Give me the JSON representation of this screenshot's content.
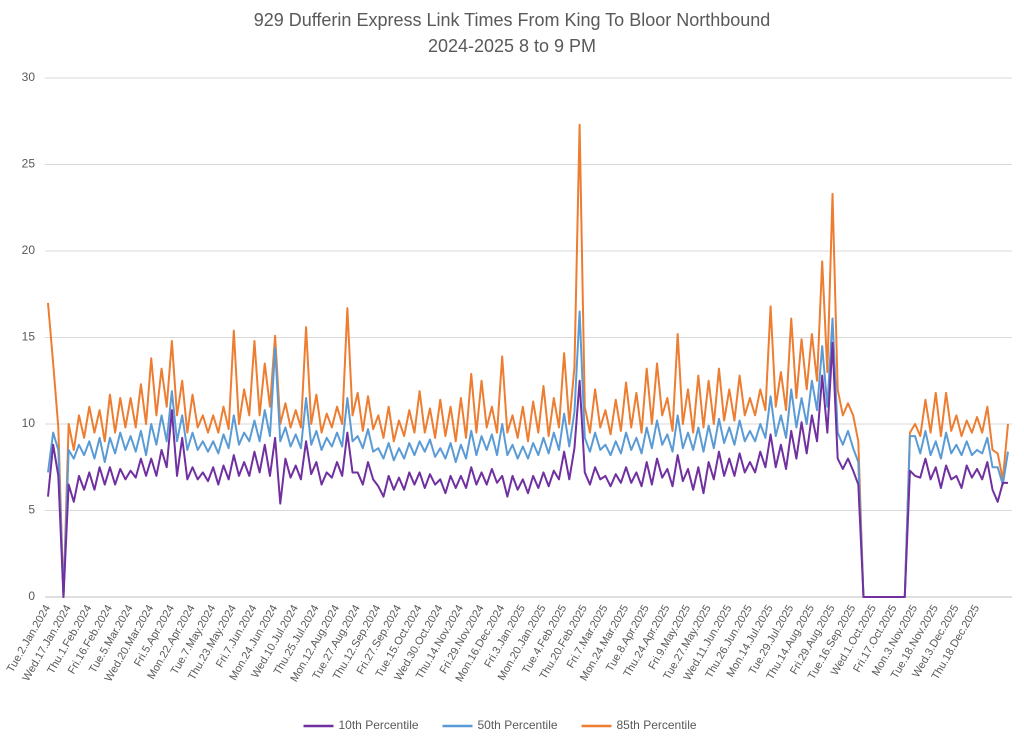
{
  "chart_data": {
    "type": "line",
    "title": "929 Dufferin Express Link Times From King To Bloor Northbound",
    "subtitle": "2024-2025 8 to 9 PM",
    "categories": [
      "Tue.2.Jan.2024",
      null,
      null,
      null,
      "Wed.17.Jan.2024",
      null,
      null,
      null,
      "Thu.1.Feb.2024",
      null,
      null,
      null,
      "Fri.16.Feb.2024",
      null,
      null,
      null,
      "Tue.5.Mar.2024",
      null,
      null,
      null,
      "Wed.20.Mar.2024",
      null,
      null,
      null,
      "Fri.5.Apr.2024",
      null,
      null,
      null,
      "Mon.22.Apr.2024",
      null,
      null,
      null,
      "Tue.7.May.2024",
      null,
      null,
      null,
      "Thu.23.May.2024",
      null,
      null,
      null,
      "Fri.7.Jun.2024",
      null,
      null,
      null,
      "Mon.24.Jun.2024",
      null,
      null,
      null,
      "Wed.10.Jul.2024",
      null,
      null,
      null,
      "Thu.25.Jul.2024",
      null,
      null,
      null,
      "Mon.12.Aug.2024",
      null,
      null,
      null,
      "Tue.27.Aug.2024",
      null,
      null,
      null,
      "Thu.12.Sep.2024",
      null,
      null,
      null,
      "Fri.27.Sep.2024",
      null,
      null,
      null,
      "Tue.15.Oct.2024",
      null,
      null,
      null,
      "Wed.30.Oct.2024",
      null,
      null,
      null,
      "Thu.14.Nov.2024",
      null,
      null,
      null,
      "Fri.29.Nov.2024",
      null,
      null,
      null,
      "Mon.16.Dec.2024",
      null,
      null,
      null,
      "Fri.3.Jan.2025",
      null,
      null,
      null,
      "Mon.20.Jan.2025",
      null,
      null,
      null,
      "Tue.4.Feb.2025",
      null,
      null,
      null,
      "Thu.20.Feb.2025",
      null,
      null,
      null,
      "Fri.7.Mar.2025",
      null,
      null,
      null,
      "Mon.24.Mar.2025",
      null,
      null,
      null,
      "Tue.8.Apr.2025",
      null,
      null,
      null,
      "Thu.24.Apr.2025",
      null,
      null,
      null,
      "Fri.9.May.2025",
      null,
      null,
      null,
      "Tue.27.May.2025",
      null,
      null,
      null,
      "Wed.11.Jun.2025",
      null,
      null,
      null,
      "Thu.26.Jun.2025",
      null,
      null,
      null,
      "Mon.14.Jul.2025",
      null,
      null,
      null,
      "Tue.29.Jul.2025",
      null,
      null,
      null,
      "Thu.14.Aug.2025",
      null,
      null,
      null,
      "Fri.29.Aug.2025",
      null,
      null,
      null,
      "Tue.16.Sep.2025",
      null,
      null,
      null,
      "Wed.1.Oct.2025",
      null,
      null,
      null,
      "Fri.17.Oct.2025",
      null,
      null,
      null,
      "Mon.3.Nov.2025",
      null,
      null,
      null,
      "Tue.18.Nov.2025",
      null,
      null,
      null,
      "Wed.3.Dec.2025",
      null,
      null,
      null,
      "Thu.18.Dec.2025",
      null,
      null,
      null,
      null,
      null,
      null
    ],
    "series": [
      {
        "name": "10th Percentile",
        "color": "#7030a0",
        "values": [
          5.8,
          8.8,
          7,
          0,
          6.5,
          5.5,
          7,
          6.2,
          7.2,
          6.2,
          7.5,
          6.5,
          7.5,
          6.5,
          7.4,
          6.8,
          7.3,
          6.9,
          8,
          7,
          8,
          7,
          8.5,
          7.5,
          10.8,
          7,
          9.2,
          6.8,
          7.5,
          6.8,
          7.2,
          6.7,
          7.5,
          6.5,
          7.6,
          6.8,
          8.2,
          7,
          7.8,
          7,
          8.4,
          7.2,
          8.8,
          7,
          9.2,
          5.4,
          8,
          6.9,
          7.6,
          6.8,
          9,
          7.1,
          7.8,
          6.5,
          7.2,
          6.9,
          7.8,
          7,
          9.5,
          7.2,
          7.2,
          6.5,
          7.8,
          6.8,
          6.4,
          5.8,
          7,
          6.2,
          6.9,
          6.2,
          7.2,
          6.5,
          7.2,
          6.3,
          7.1,
          6.5,
          6.8,
          6,
          7,
          6.3,
          7,
          6.3,
          7.5,
          6.5,
          7.2,
          6.5,
          7.4,
          6.6,
          7,
          5.8,
          7,
          6.2,
          6.8,
          6,
          7,
          6.3,
          7.2,
          6.4,
          7.3,
          6.8,
          8.4,
          6.8,
          8.6,
          12.5,
          7.2,
          6.5,
          7.5,
          6.8,
          7,
          6.4,
          7.1,
          6.6,
          7.5,
          6.6,
          7.2,
          6.4,
          7.8,
          6.5,
          8,
          6.9,
          7.4,
          6.4,
          8.2,
          6.7,
          7.4,
          6.2,
          7.5,
          6,
          7.8,
          6.8,
          8.4,
          7,
          8,
          7,
          8.3,
          7.2,
          7.8,
          7.2,
          8.4,
          7.5,
          9.4,
          7.5,
          8.8,
          7.4,
          9.6,
          8,
          10.1,
          8.3,
          10.5,
          9,
          12.8,
          9.5,
          14.7,
          8,
          7.4,
          8,
          7.3,
          6.5,
          0,
          0,
          0,
          0,
          0,
          0,
          0,
          0,
          0,
          7.3,
          7,
          6.9,
          8,
          6.8,
          7.5,
          6.3,
          7.6,
          6.8,
          7,
          6.3,
          7.6,
          6.9,
          7.4,
          6.8,
          7.8,
          6.2,
          5.5,
          6.6,
          6.6
        ]
      },
      {
        "name": "50th Percentile",
        "color": "#5b9bd5",
        "values": [
          7.2,
          9.5,
          8.5,
          0,
          8.5,
          8,
          8.8,
          8.2,
          9,
          8,
          9.2,
          7.8,
          9.2,
          8.3,
          9.5,
          8.5,
          9.3,
          8.4,
          9.6,
          8.2,
          10,
          8.8,
          10.5,
          9,
          11.9,
          9,
          10.5,
          8.5,
          9.5,
          8.5,
          9,
          8.4,
          9,
          8.3,
          9.4,
          8.6,
          10.5,
          8.8,
          9.5,
          9,
          10.2,
          9,
          10.8,
          9.3,
          14.4,
          9,
          9.8,
          8.7,
          9.4,
          8.6,
          11.5,
          8.8,
          9.6,
          8.5,
          9.2,
          8.7,
          9.5,
          8.7,
          11.5,
          9,
          9.3,
          8.6,
          9.7,
          8.4,
          8.6,
          8,
          8.9,
          7.9,
          8.6,
          8,
          8.9,
          8.2,
          9,
          8.4,
          9.1,
          8.1,
          8.6,
          8,
          8.9,
          7.8,
          8.8,
          8,
          9.6,
          8.2,
          9.3,
          8.5,
          9.4,
          8.2,
          10,
          8.2,
          8.8,
          8,
          8.7,
          8,
          8.9,
          8.2,
          9.2,
          8.3,
          9.5,
          8.5,
          10.6,
          8.7,
          10.7,
          16.5,
          9.2,
          8.4,
          9.5,
          8.5,
          8.8,
          8.2,
          9,
          8.3,
          9.5,
          8.5,
          9.2,
          8.3,
          9.8,
          8.6,
          10.2,
          8.8,
          9.4,
          8.4,
          10.5,
          8.6,
          9.5,
          8.5,
          9.8,
          8.4,
          9.9,
          8.6,
          10.3,
          8.9,
          9.8,
          8.8,
          10.2,
          9,
          9.6,
          9,
          10,
          9.2,
          11.6,
          9.3,
          10.5,
          9.2,
          12,
          9.8,
          11.5,
          10,
          12.5,
          10.8,
          14.5,
          11,
          16.1,
          9.5,
          8.8,
          9.6,
          8.6,
          7.8,
          0,
          0,
          0,
          0,
          0,
          0,
          0,
          0,
          0,
          9.3,
          9.3,
          8.3,
          9.6,
          8.2,
          9,
          8,
          9.5,
          8.3,
          8.8,
          8.2,
          9,
          8.2,
          8.5,
          8.3,
          9.2,
          7.5,
          7.5,
          6.5,
          8.4
        ]
      },
      {
        "name": "85th Percentile",
        "color": "#ed7d31",
        "values": [
          17,
          13.5,
          9.8,
          0,
          10,
          8.5,
          10.5,
          9.2,
          11,
          9.5,
          10.8,
          9,
          11.7,
          9.5,
          11.5,
          9.8,
          11.5,
          9.8,
          12.3,
          10,
          13.8,
          10.5,
          13.2,
          11,
          14.8,
          10.5,
          12.5,
          9.5,
          11.7,
          9.8,
          10.5,
          9.5,
          10.5,
          9.5,
          11,
          9.7,
          15.4,
          10,
          12,
          10.5,
          14.8,
          10.5,
          13.5,
          11,
          15.1,
          10,
          11.2,
          9.8,
          10.8,
          9.8,
          15.6,
          10,
          11.7,
          9.5,
          10.6,
          9.8,
          11,
          10,
          16.7,
          10.5,
          11.8,
          9.6,
          11.6,
          9.7,
          10.5,
          9.2,
          11,
          9,
          10.2,
          9.3,
          10.8,
          9.5,
          11.9,
          9.5,
          10.9,
          9.2,
          11.4,
          9.3,
          11,
          9,
          11.5,
          9.2,
          12.9,
          9.5,
          12.5,
          9.8,
          11,
          9.5,
          13.9,
          9.5,
          10.5,
          9.2,
          11,
          9,
          11.3,
          9.5,
          12.2,
          9.3,
          11.5,
          9.8,
          14.1,
          10,
          13.3,
          27.3,
          11,
          9.5,
          12,
          9.8,
          10.8,
          9.4,
          11.4,
          9.6,
          12.4,
          9.8,
          11.8,
          9.5,
          13.2,
          10,
          13.5,
          10.5,
          11.5,
          9.6,
          15.2,
          10,
          12,
          9.5,
          12.8,
          9.8,
          12.5,
          10,
          13.2,
          10.2,
          12,
          10.2,
          12.8,
          10.5,
          11.5,
          10.5,
          12,
          10.8,
          16.8,
          11,
          13,
          10.8,
          16.1,
          11.5,
          14.9,
          12,
          15.2,
          12.5,
          19.4,
          13,
          23.3,
          12,
          10.5,
          11.2,
          10.5,
          9,
          0,
          0,
          0,
          0,
          0,
          0,
          0,
          0,
          0,
          9.5,
          10,
          9.3,
          11.4,
          9.5,
          11.8,
          9.3,
          11.8,
          9.6,
          10.5,
          9.3,
          10.2,
          9.5,
          10.4,
          9.5,
          11,
          8.5,
          8.3,
          6.8,
          10
        ]
      }
    ],
    "ylim": [
      0,
      30
    ],
    "yticks": [
      0,
      5,
      10,
      15,
      20,
      25,
      30
    ],
    "grid": true,
    "legend": "bottom"
  }
}
